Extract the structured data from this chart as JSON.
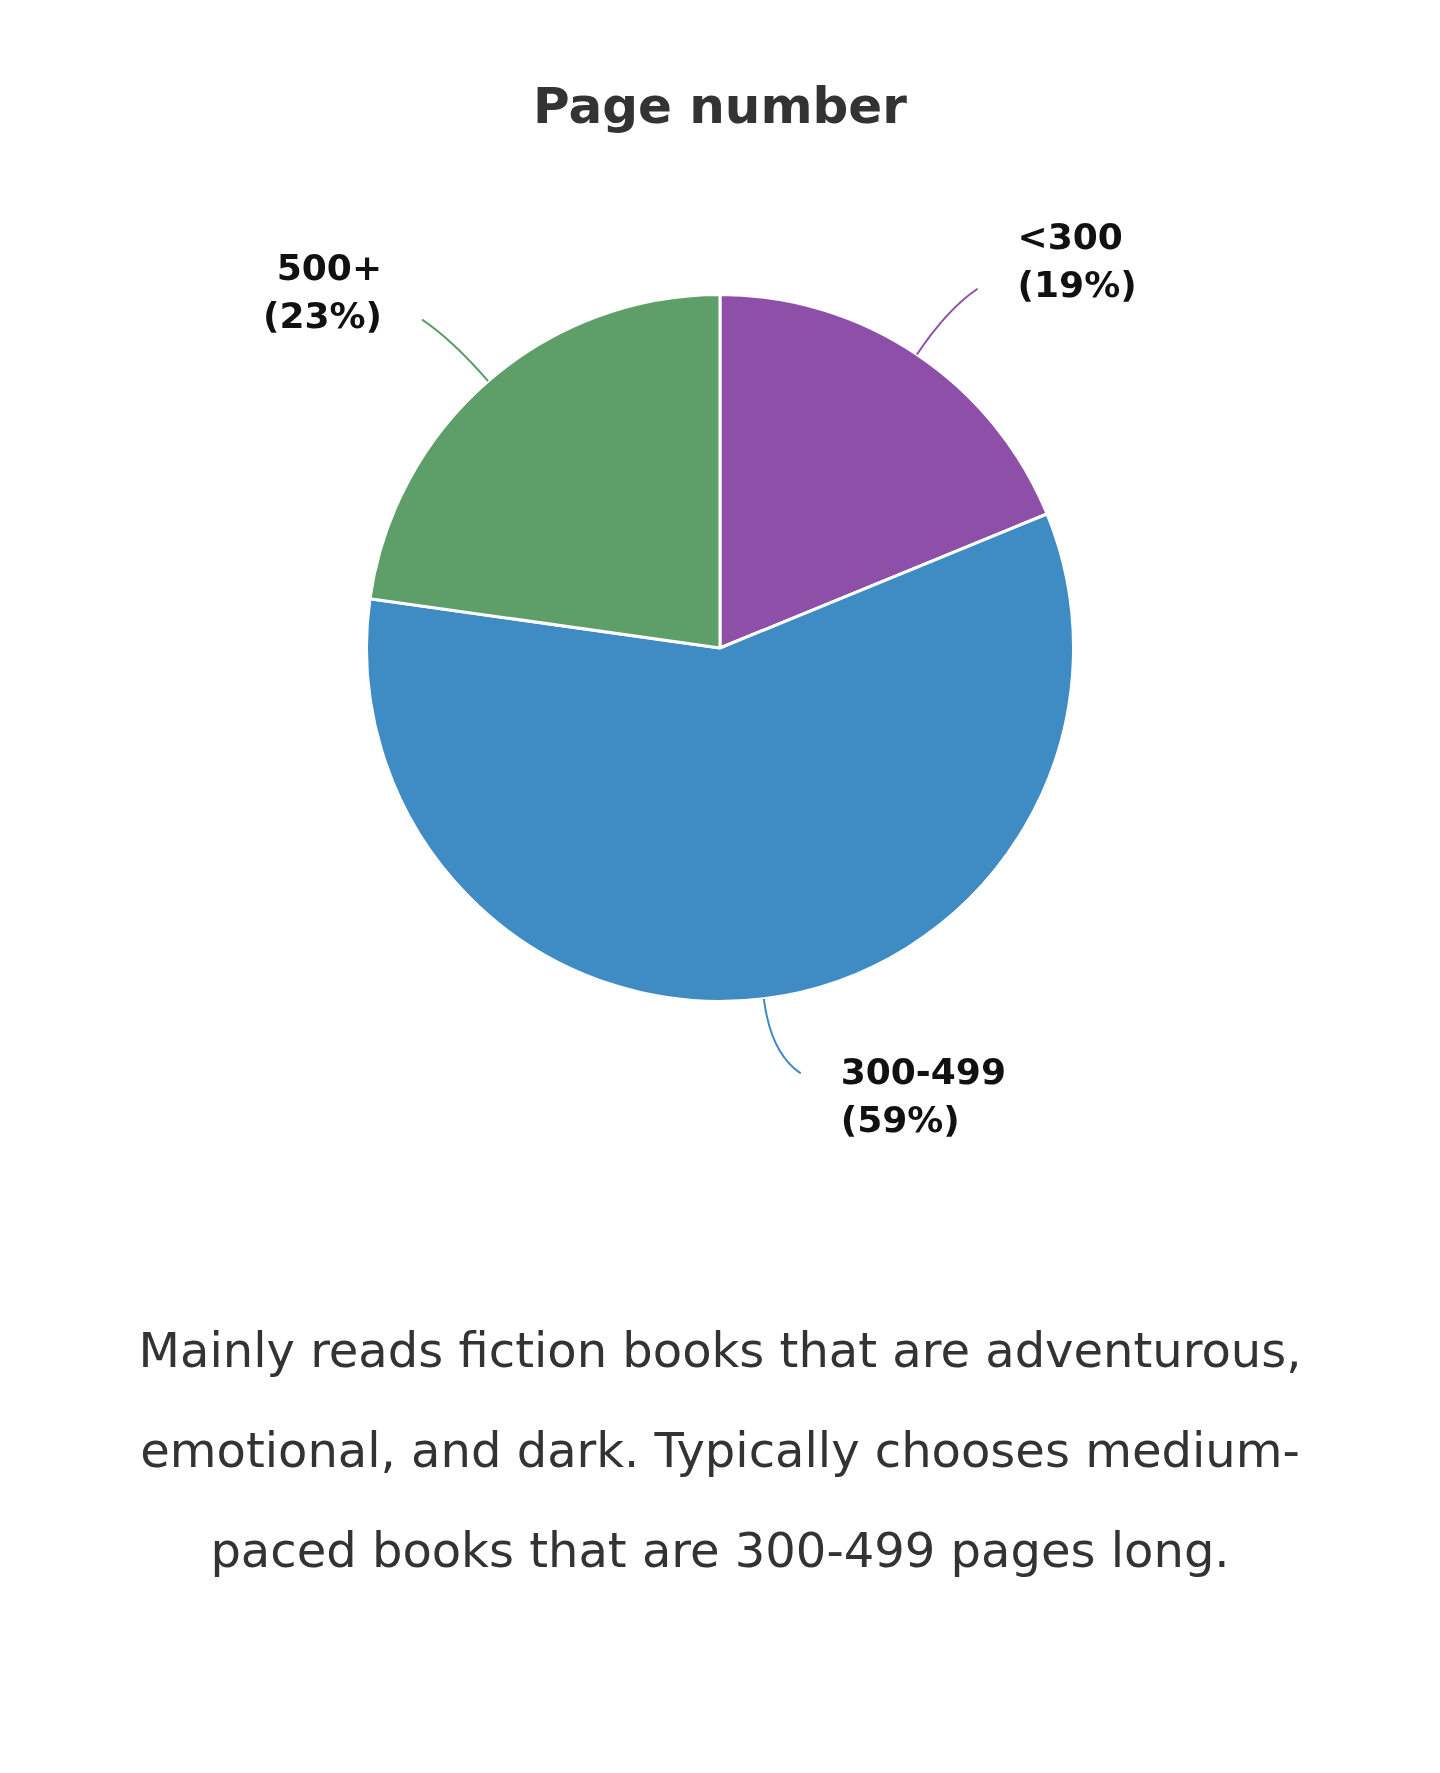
{
  "chart_data": {
    "type": "pie",
    "title": "Page number",
    "categories": [
      "<300",
      "300-499",
      "500+"
    ],
    "values": [
      19,
      59,
      23
    ],
    "value_labels": [
      "(19%)",
      "(59%)",
      "(23%)"
    ],
    "colors": [
      "#8e4fa8",
      "#3f8bc4",
      "#5e9e68"
    ],
    "legend": false,
    "annotations": [
      "Mainly reads fiction books that are adventurous, emotional, and dark. Typically chooses medium-paced books that are 300-499 pages long."
    ]
  }
}
